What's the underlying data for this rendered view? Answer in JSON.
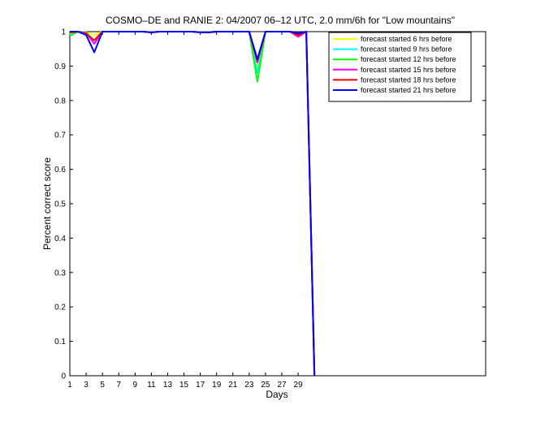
{
  "chart_data": {
    "type": "line",
    "title": "COSMO–DE and RANIE 2: 04/2007 06–12 UTC, 2.0 mm/6h for \"Low mountains\"",
    "xlabel": "Days",
    "ylabel": "Percent correct score",
    "xlim": [
      1,
      52
    ],
    "ylim": [
      0,
      1
    ],
    "xticks": [
      1,
      3,
      5,
      7,
      9,
      11,
      13,
      15,
      17,
      19,
      21,
      23,
      25,
      27,
      29
    ],
    "yticks": [
      0,
      0.1,
      0.2,
      0.3,
      0.4,
      0.5,
      0.6,
      0.7,
      0.8,
      0.9,
      1
    ],
    "ytick_labels": [
      "0",
      "0.1",
      "0.2",
      "0.3",
      "0.4",
      "0.5",
      "0.6",
      "0.7",
      "0.8",
      "0.9",
      "1"
    ],
    "legend_position": "top-right",
    "grid": false,
    "x": [
      1,
      2,
      3,
      4,
      5,
      6,
      7,
      8,
      9,
      10,
      11,
      12,
      13,
      14,
      15,
      16,
      17,
      18,
      19,
      20,
      21,
      22,
      23,
      24,
      25,
      26,
      27,
      28,
      29,
      30,
      31
    ],
    "series": [
      {
        "name": "forecast started 6 hrs before",
        "color": "#ffff00",
        "values": [
          0.995,
          1,
          0.998,
          0.99,
          1,
          1,
          1,
          1,
          1,
          1,
          0.998,
          1,
          1,
          1,
          1,
          1,
          0.998,
          0.998,
          1,
          1,
          1,
          1,
          1,
          0.89,
          1,
          1,
          1,
          1,
          0.99,
          1,
          0
        ]
      },
      {
        "name": "forecast started 9 hrs before",
        "color": "#00ffff",
        "values": [
          0.99,
          1,
          0.998,
          0.975,
          1,
          1,
          1,
          1,
          1,
          1,
          0.998,
          1,
          1,
          1,
          1,
          1,
          0.998,
          0.998,
          1,
          1,
          1,
          1,
          1,
          0.88,
          1,
          1,
          1,
          1,
          0.99,
          1,
          0
        ]
      },
      {
        "name": "forecast started 12 hrs before",
        "color": "#00ff00",
        "values": [
          0.988,
          1,
          0.998,
          0.965,
          1,
          1,
          1,
          1,
          1,
          1,
          0.998,
          1,
          1,
          1,
          1,
          1,
          0.998,
          0.998,
          1,
          1,
          1,
          1,
          1,
          0.855,
          1,
          1,
          1,
          1,
          0.99,
          1,
          0
        ]
      },
      {
        "name": "forecast started 15 hrs before",
        "color": "#ff00ff",
        "values": [
          0.998,
          1,
          0.996,
          0.965,
          1,
          1,
          1,
          1,
          1,
          1,
          0.998,
          1,
          1,
          1,
          1,
          1,
          0.998,
          0.998,
          1,
          1,
          1,
          1,
          1,
          0.91,
          1,
          1,
          1,
          1,
          0.985,
          1,
          0
        ]
      },
      {
        "name": "forecast started 18 hrs before",
        "color": "#ff0000",
        "values": [
          0.998,
          1,
          0.994,
          0.975,
          1,
          1,
          1,
          1,
          1,
          1,
          0.998,
          1,
          1,
          1,
          1,
          1,
          0.998,
          0.998,
          1,
          1,
          1,
          1,
          1,
          0.915,
          1,
          1,
          1,
          1,
          0.99,
          1,
          0
        ]
      },
      {
        "name": "forecast started 21 hrs before",
        "color": "#0000ff",
        "values": [
          1,
          1,
          0.99,
          0.94,
          1,
          1,
          1,
          1,
          1,
          1,
          0.998,
          1,
          1,
          1,
          1,
          1,
          0.998,
          0.998,
          1,
          1,
          1,
          1,
          1,
          0.92,
          1,
          1,
          1,
          1,
          0.995,
          1,
          0
        ]
      }
    ]
  }
}
